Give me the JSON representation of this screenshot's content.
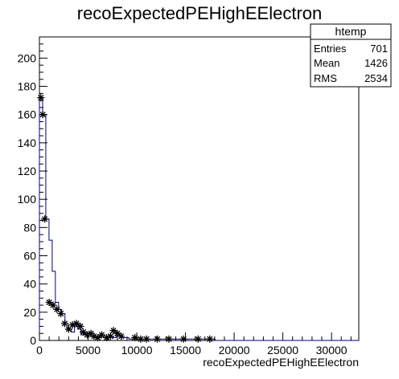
{
  "chart_data": {
    "type": "bar",
    "title": "recoExpectedPEHighEElectron",
    "xlabel": "recoExpectedPEHighEElectron",
    "ylabel": "",
    "xlim": [
      0,
      32800
    ],
    "ylim": [
      0,
      215
    ],
    "x_ticks": [
      0,
      5000,
      10000,
      15000,
      20000,
      25000,
      30000
    ],
    "y_ticks": [
      0,
      20,
      40,
      60,
      80,
      100,
      120,
      140,
      160,
      180,
      200
    ],
    "bin_width": 328,
    "histogram_values": [
      172,
      160,
      86,
      71,
      49,
      27,
      22,
      19,
      12,
      8,
      6,
      10,
      8,
      4,
      6,
      5,
      3,
      3,
      2,
      3,
      2,
      2,
      3,
      2,
      4,
      3,
      2,
      2,
      1,
      1,
      1,
      1,
      1,
      1,
      1,
      1,
      1,
      1,
      1,
      1,
      1,
      1,
      1,
      1,
      1,
      1,
      1,
      1,
      1,
      1,
      1,
      1,
      1,
      1,
      1
    ],
    "markers": {
      "x": [
        150,
        350,
        550,
        1000,
        1400,
        1800,
        2200,
        2600,
        3000,
        3400,
        3800,
        4200,
        4500,
        4900,
        5300,
        5600,
        6000,
        6400,
        6900,
        7300,
        7600,
        8000,
        8400,
        9800,
        10400,
        11000,
        12100,
        13300,
        14800,
        16300,
        17500
      ],
      "y": [
        172,
        160,
        86,
        27,
        25,
        22,
        19,
        12,
        8,
        11,
        12,
        10,
        6,
        4,
        5,
        3,
        2,
        4,
        2,
        3,
        7,
        5,
        3,
        2,
        1,
        1,
        1,
        1,
        1,
        1,
        1
      ]
    },
    "stats": {
      "title": "htemp",
      "rows": [
        {
          "label": "Entries",
          "value": "701"
        },
        {
          "label": "Mean",
          "value": "1426"
        },
        {
          "label": "RMS",
          "value": "2534"
        }
      ]
    },
    "grid": false,
    "line_color": "#000080",
    "marker_color": "#000000"
  }
}
